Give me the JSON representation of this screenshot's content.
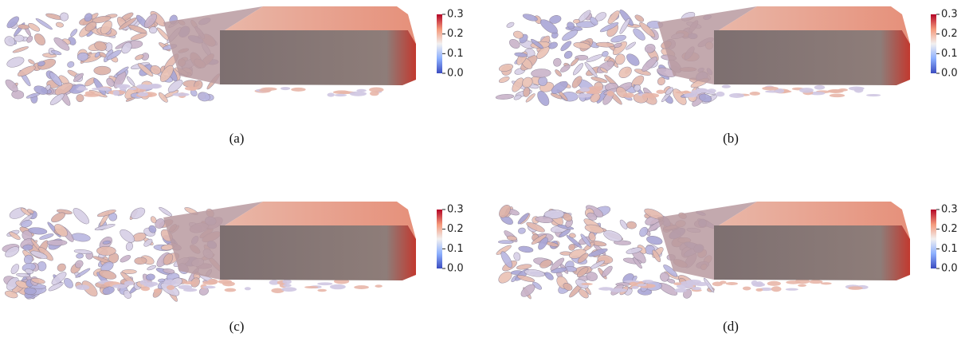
{
  "panels": [
    {
      "caption": "(a)",
      "colorbar": {
        "ticks": [
          {
            "value": 0,
            "label": "0.0"
          },
          0.1,
          0.2,
          0.3
        ]
      }
    },
    {
      "caption": "(b)",
      "colorbar": {
        "ticks": [
          {
            "value": 0,
            "label": "0.0"
          },
          0.1,
          0.2,
          0.3
        ]
      }
    },
    {
      "caption": "(c)",
      "colorbar": {
        "ticks": [
          {
            "value": 0,
            "label": "0.0"
          },
          0.1,
          0.2,
          0.3
        ]
      }
    },
    {
      "caption": "(d)",
      "colorbar": {
        "ticks": [
          {
            "value": 0,
            "label": "0.0"
          },
          0.1,
          0.2,
          0.3
        ]
      }
    }
  ]
}
